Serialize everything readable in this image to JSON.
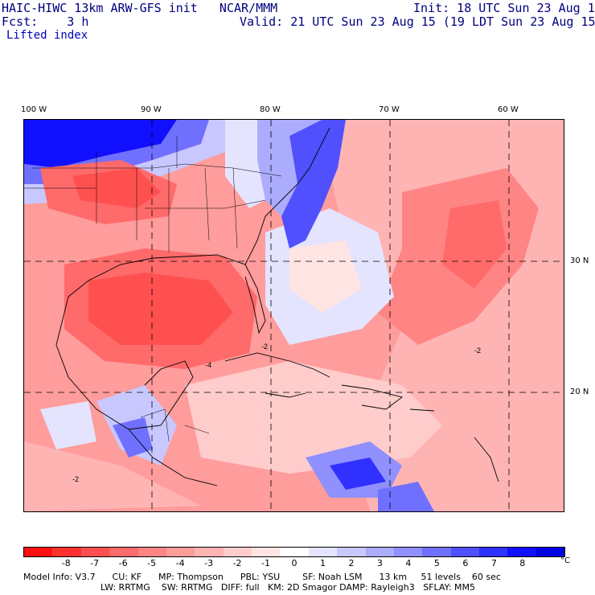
{
  "header": {
    "title": "HAIC-HIWC 13km ARW-GFS init   NCAR/MMM",
    "forecast": "Fcst:    3 h",
    "field": "Lifted index",
    "init": "Init: 18 UTC Sun 23 Aug 15",
    "valid": "Valid: 21 UTC Sun 23 Aug 15 (19 LDT Sun 23 Aug 15)"
  },
  "map": {
    "longitude_labels": [
      "100 W",
      "90 W",
      "80 W",
      "70 W",
      "60 W"
    ],
    "latitude_labels": [
      "30 N",
      "20 N"
    ],
    "contour_labels": [
      "-2",
      "-2",
      "-2",
      "-4"
    ]
  },
  "colorbar": {
    "ticks": [
      "-8",
      "-7",
      "-6",
      "-5",
      "-4",
      "-3",
      "-2",
      "-1",
      "0",
      "1",
      "2",
      "3",
      "4",
      "5",
      "6",
      "7",
      "8"
    ],
    "unit": "°C",
    "colors": [
      "#ff1010",
      "#ff3030",
      "#ff5050",
      "#ff6a6a",
      "#ff8484",
      "#ff9c9c",
      "#ffb4b4",
      "#ffcccc",
      "#ffe4e4",
      "#ffffff",
      "#e4e4ff",
      "#c8c8ff",
      "#acacff",
      "#9090ff",
      "#7070ff",
      "#5050ff",
      "#3030ff",
      "#1010ff",
      "#0000e0"
    ]
  },
  "footer": {
    "line1": "Model Info: V3.7      CU: KF      MP: Thompson      PBL: YSU        SF: Noah LSM      13 km     51 levels    60 sec",
    "line2": "LW: RRTMG    SW: RRTMG   DIFF: full   KM: 2D Smagor DAMP: Rayleigh3   SFLAY: MM5"
  }
}
